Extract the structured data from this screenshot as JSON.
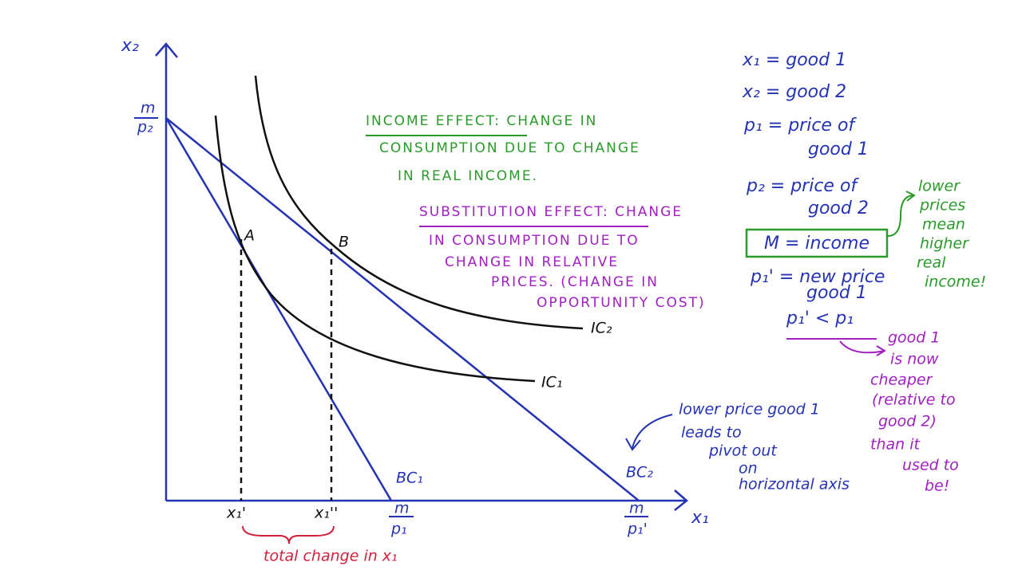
{
  "axes": {
    "y_label": "x₂",
    "x_label": "x₁"
  },
  "intercepts": {
    "y": {
      "numerator": "m",
      "denominator": "p₂"
    },
    "x_bc1": {
      "numerator": "m",
      "denominator": "p₁"
    },
    "x_bc2": {
      "numerator": "m",
      "denominator": "p₁'"
    }
  },
  "points": [
    "A",
    "B"
  ],
  "x_marks": [
    "x₁'",
    "x₁''"
  ],
  "curves": {
    "bc1": "BC₁",
    "bc2": "BC₂",
    "ic1": "IC₁",
    "ic2": "IC₂"
  },
  "brace_label": "total change in x₁",
  "income_effect": [
    "INCOME EFFECT: CHANGE IN",
    "CONSUMPTION DUE TO CHANGE",
    "IN REAL INCOME."
  ],
  "substitution_effect": [
    "SUBSTITUTION EFFECT: CHANGE",
    "IN CONSUMPTION DUE TO",
    "CHANGE IN RELATIVE",
    "PRICES. (CHANGE IN",
    "OPPORTUNITY COST)"
  ],
  "definitions": [
    "x₁ = good 1",
    "x₂ = good 2",
    "p₁ = price of",
    "good 1",
    "p₂ = price of",
    "good 2"
  ],
  "income_box": "M = income",
  "new_price": [
    "p₁' = new price",
    "good 1",
    "p₁' < p₁"
  ],
  "income_note": [
    "lower",
    "prices",
    "mean",
    "higher",
    "real",
    "income!"
  ],
  "cheaper_note": [
    "good 1",
    "is now",
    "cheaper",
    "(relative to",
    "good 2)",
    "than it",
    "used to",
    "be!"
  ],
  "pivot_note": [
    "lower price good 1",
    "leads to",
    "pivot out",
    "on",
    "horizontal axis"
  ]
}
